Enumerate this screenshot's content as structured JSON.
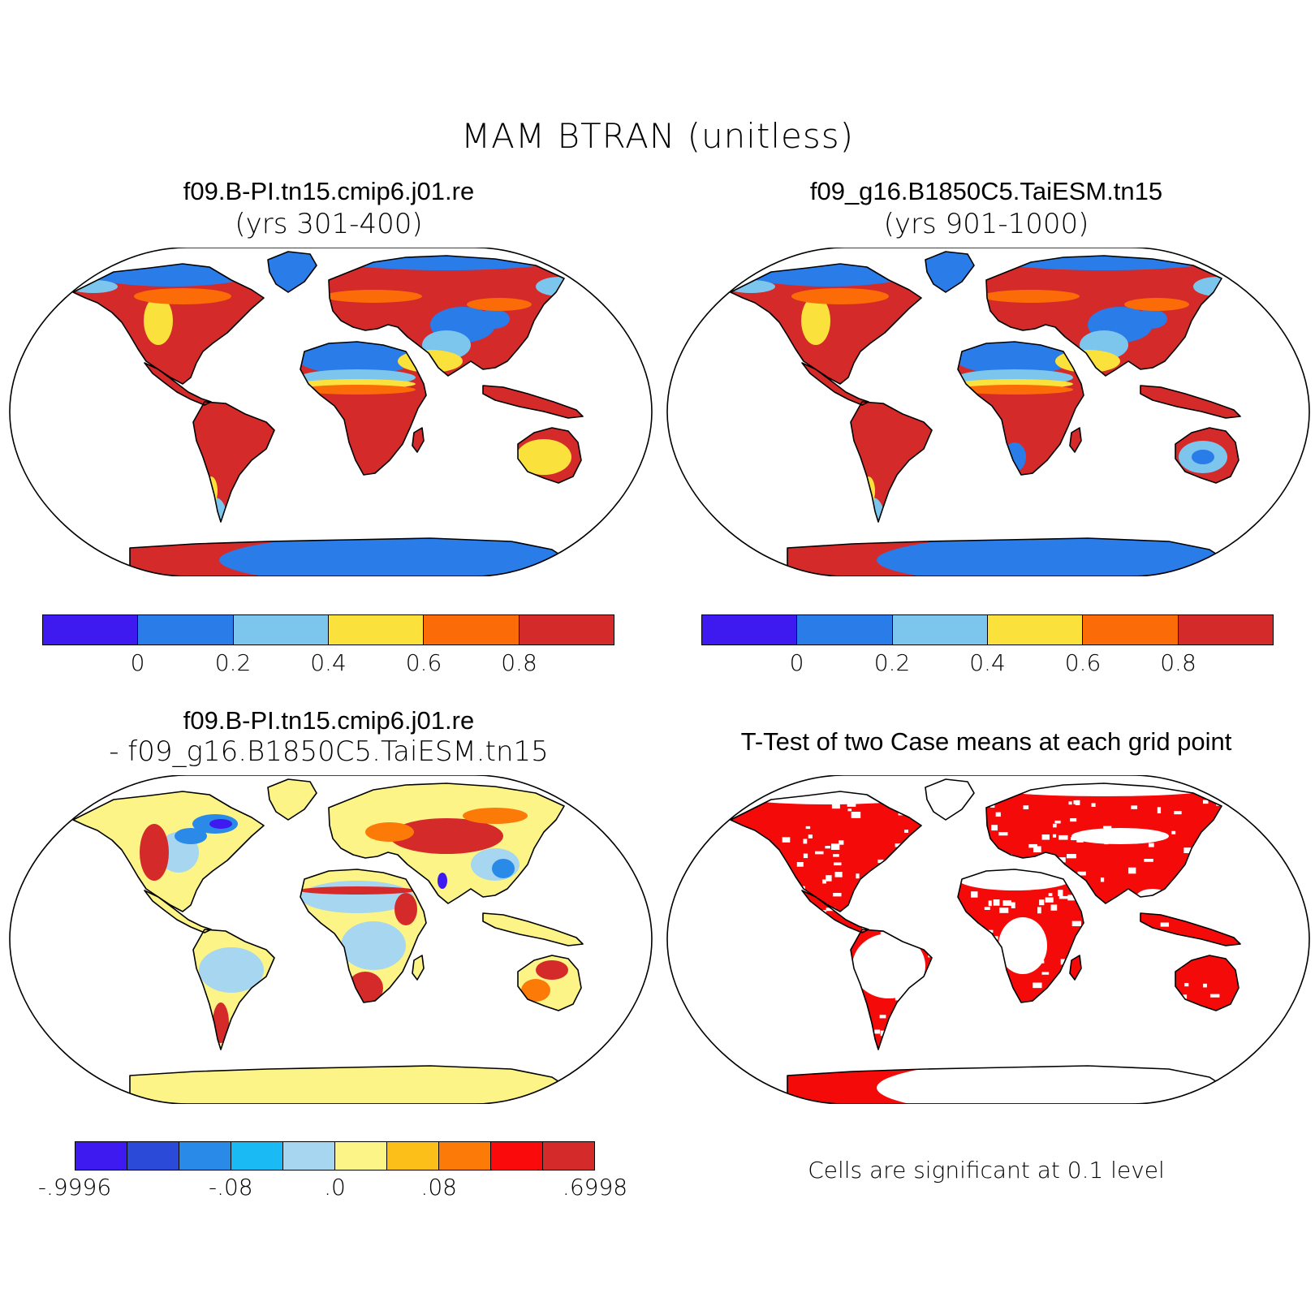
{
  "title": "MAM  BTRAN (unitless)",
  "panels": {
    "p1": {
      "title": "f09.B-PI.tn15.cmip6.j01.re",
      "subtitle": "(yrs 301-400)"
    },
    "p2": {
      "title": "f09_g16.B1850C5.TaiESM.tn15",
      "subtitle": "(yrs 901-1000)"
    },
    "p3": {
      "title": "f09.B-PI.tn15.cmip6.j01.re",
      "subtitle": "- f09_g16.B1850C5.TaiESM.tn15"
    },
    "p4": {
      "title": "T-Test of two Case means at each grid point",
      "note": "Cells are significant at 0.1 level"
    }
  },
  "colorbar_abs": {
    "colors": [
      "#3f1af0",
      "#2a7ce8",
      "#7cc6ee",
      "#fbe13b",
      "#fb6b08",
      "#d42a2a"
    ],
    "tick_labels": [
      "0",
      "0.2",
      "0.4",
      "0.6",
      "0.8"
    ]
  },
  "colorbar_diff": {
    "colors": [
      "#3f1af0",
      "#2b4ad8",
      "#2a8ae8",
      "#1abaf4",
      "#a6d6f0",
      "#fcf487",
      "#fcbe18",
      "#fc7a08",
      "#fa0a0a",
      "#d42a2a"
    ],
    "tick_labels": [
      "-.9996",
      "-.08",
      ".0",
      ".08",
      ".6998"
    ]
  },
  "map_colors": {
    "ocean": "#ffffff",
    "coast": "#000000",
    "ttest_signif": "#f50a0a"
  }
}
